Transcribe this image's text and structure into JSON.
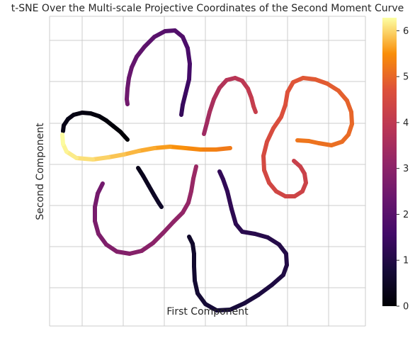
{
  "chart_data": {
    "type": "scatter",
    "title": "t-SNE Over the Multi-scale Projective Coordinates of the Second Moment Curve",
    "xlabel": "First Component",
    "ylabel": "Second Component",
    "grid": true,
    "x_tick_labels": false,
    "y_tick_labels": false,
    "colormap": "inferno",
    "colorbar": {
      "min": 0,
      "max": 6.283,
      "ticks": [
        0,
        1,
        2,
        3,
        4,
        5,
        6
      ],
      "tick_labels": [
        "0",
        "1",
        "2",
        "3",
        "4",
        "5",
        "6"
      ]
    },
    "segments": [
      {
        "c0": 0.0,
        "c1": 0.3,
        "points": [
          [
            180,
            197
          ],
          [
            170,
            186
          ],
          [
            160,
            178
          ],
          [
            150,
            170
          ],
          [
            140,
            164
          ],
          [
            128,
            160
          ],
          [
            116,
            159
          ],
          [
            104,
            162
          ],
          [
            96,
            168
          ],
          [
            90,
            177
          ],
          [
            89,
            185
          ]
        ]
      },
      {
        "c0": 0.3,
        "c1": 0.55,
        "points": [
          [
            195,
            237
          ],
          [
            202,
            248
          ],
          [
            210,
            262
          ],
          [
            218,
            276
          ],
          [
            224,
            286
          ],
          [
            228,
            292
          ]
        ]
      },
      {
        "c0": 0.55,
        "c1": 1.3,
        "points": [
          [
            267,
            334
          ],
          [
            272,
            344
          ],
          [
            274,
            358
          ],
          [
            274,
            376
          ],
          [
            275,
            396
          ],
          [
            279,
            414
          ],
          [
            290,
            429
          ],
          [
            306,
            438
          ],
          [
            325,
            437
          ],
          [
            345,
            428
          ],
          [
            365,
            416
          ],
          [
            384,
            402
          ],
          [
            400,
            388
          ],
          [
            405,
            374
          ],
          [
            404,
            358
          ],
          [
            394,
            345
          ],
          [
            378,
            335
          ],
          [
            360,
            330
          ],
          [
            342,
            327
          ],
          [
            333,
            316
          ],
          [
            327,
            295
          ],
          [
            321,
            270
          ],
          [
            315,
            253
          ],
          [
            310,
            242
          ]
        ]
      },
      {
        "c0": 1.3,
        "c1": 2.5,
        "points": [
          [
            256,
            162
          ],
          [
            258,
            148
          ],
          [
            262,
            132
          ],
          [
            267,
            112
          ],
          [
            268,
            90
          ],
          [
            265,
            68
          ],
          [
            258,
            52
          ],
          [
            247,
            43
          ],
          [
            233,
            44
          ],
          [
            218,
            52
          ],
          [
            204,
            66
          ],
          [
            193,
            80
          ],
          [
            186,
            95
          ],
          [
            182,
            110
          ],
          [
            180,
            125
          ],
          [
            179,
            140
          ],
          [
            180,
            147
          ]
        ]
      },
      {
        "c0": 2.5,
        "c1": 3.3,
        "points": [
          [
            145,
            259
          ],
          [
            138,
            273
          ],
          [
            134,
            292
          ],
          [
            134,
            312
          ],
          [
            139,
            330
          ],
          [
            150,
            345
          ],
          [
            165,
            355
          ],
          [
            183,
            358
          ],
          [
            200,
            354
          ],
          [
            216,
            343
          ],
          [
            231,
            328
          ],
          [
            245,
            313
          ],
          [
            258,
            300
          ],
          [
            266,
            286
          ],
          [
            270,
            270
          ],
          [
            273,
            252
          ],
          [
            277,
            235
          ]
        ]
      },
      {
        "c0": 3.3,
        "c1": 4.2,
        "points": [
          [
            288,
            189
          ],
          [
            292,
            174
          ],
          [
            296,
            158
          ],
          [
            302,
            140
          ],
          [
            310,
            124
          ],
          [
            320,
            113
          ],
          [
            332,
            110
          ],
          [
            342,
            114
          ],
          [
            350,
            125
          ],
          [
            355,
            138
          ],
          [
            358,
            150
          ],
          [
            361,
            158
          ]
        ]
      },
      {
        "c0": 4.2,
        "c1": 5.2,
        "points": [
          [
            415,
            227
          ],
          [
            424,
            235
          ],
          [
            430,
            245
          ],
          [
            432,
            258
          ],
          [
            427,
            270
          ],
          [
            416,
            277
          ],
          [
            403,
            277
          ],
          [
            390,
            270
          ],
          [
            380,
            258
          ],
          [
            373,
            240
          ],
          [
            372,
            220
          ],
          [
            377,
            200
          ],
          [
            386,
            181
          ],
          [
            397,
            165
          ],
          [
            403,
            148
          ],
          [
            406,
            130
          ],
          [
            414,
            116
          ],
          [
            428,
            110
          ],
          [
            445,
            112
          ],
          [
            462,
            118
          ],
          [
            478,
            128
          ],
          [
            490,
            142
          ],
          [
            496,
            158
          ],
          [
            497,
            175
          ],
          [
            492,
            190
          ],
          [
            483,
            200
          ],
          [
            468,
            205
          ],
          [
            450,
            202
          ],
          [
            436,
            199
          ],
          [
            420,
            198
          ]
        ]
      },
      {
        "c0": 5.2,
        "c1": 6.283,
        "points": [
          [
            325,
            209
          ],
          [
            305,
            211
          ],
          [
            283,
            211
          ],
          [
            262,
            209
          ],
          [
            240,
            207
          ],
          [
            218,
            209
          ],
          [
            196,
            213
          ],
          [
            175,
            218
          ],
          [
            153,
            222
          ],
          [
            131,
            225
          ],
          [
            108,
            223
          ],
          [
            94,
            214
          ],
          [
            89,
            203
          ],
          [
            88,
            190
          ]
        ]
      }
    ]
  }
}
